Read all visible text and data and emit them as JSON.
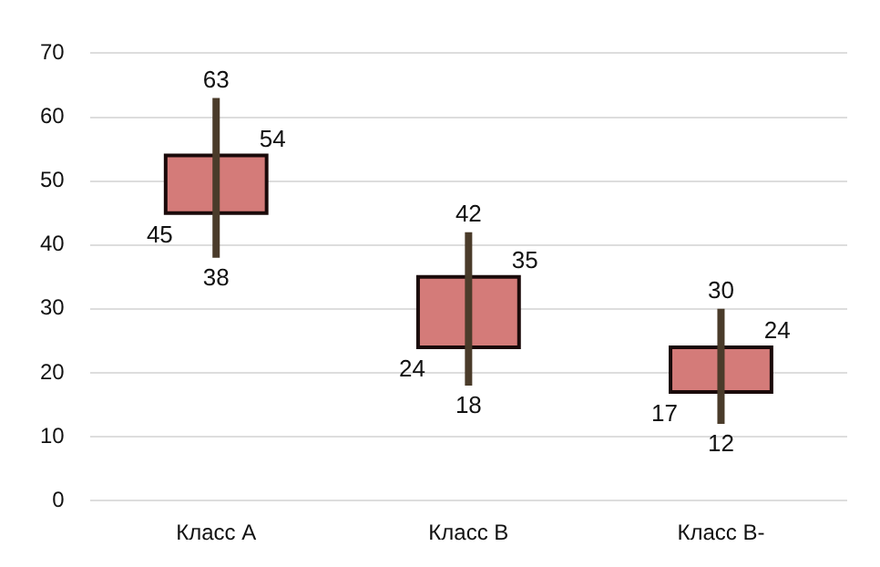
{
  "chart_data": {
    "type": "candlestick",
    "categories": [
      "Класс А",
      "Класс В",
      "Класс В-"
    ],
    "ohlc": [
      [
        45,
        63,
        38,
        54
      ],
      [
        24,
        42,
        18,
        35
      ],
      [
        17,
        30,
        12,
        24
      ]
    ],
    "color": "#d47b79",
    "ylim": [
      0,
      70
    ],
    "yticks": [
      0,
      10,
      20,
      30,
      40,
      50,
      60,
      70
    ],
    "grid": "y",
    "annotations": [
      {
        "text": "63",
        "x": "Класс А",
        "y": 63
      },
      {
        "text": "54",
        "x": "Класс А",
        "y": 54
      },
      {
        "text": "45",
        "x": "Класс А",
        "y": 45
      },
      {
        "text": "38",
        "x": "Класс А",
        "y": 38
      },
      {
        "text": "42",
        "x": "Класс В",
        "y": 42
      },
      {
        "text": "35",
        "x": "Класс В",
        "y": 35
      },
      {
        "text": "24",
        "x": "Класс В",
        "y": 24
      },
      {
        "text": "18",
        "x": "Класс В",
        "y": 18
      },
      {
        "text": "30",
        "x": "Класс В-",
        "y": 30
      },
      {
        "text": "24",
        "x": "Класс В-",
        "y": 24
      },
      {
        "text": "17",
        "x": "Класс В-",
        "y": 17
      },
      {
        "text": "12",
        "x": "Класс В-",
        "y": 12
      }
    ]
  }
}
